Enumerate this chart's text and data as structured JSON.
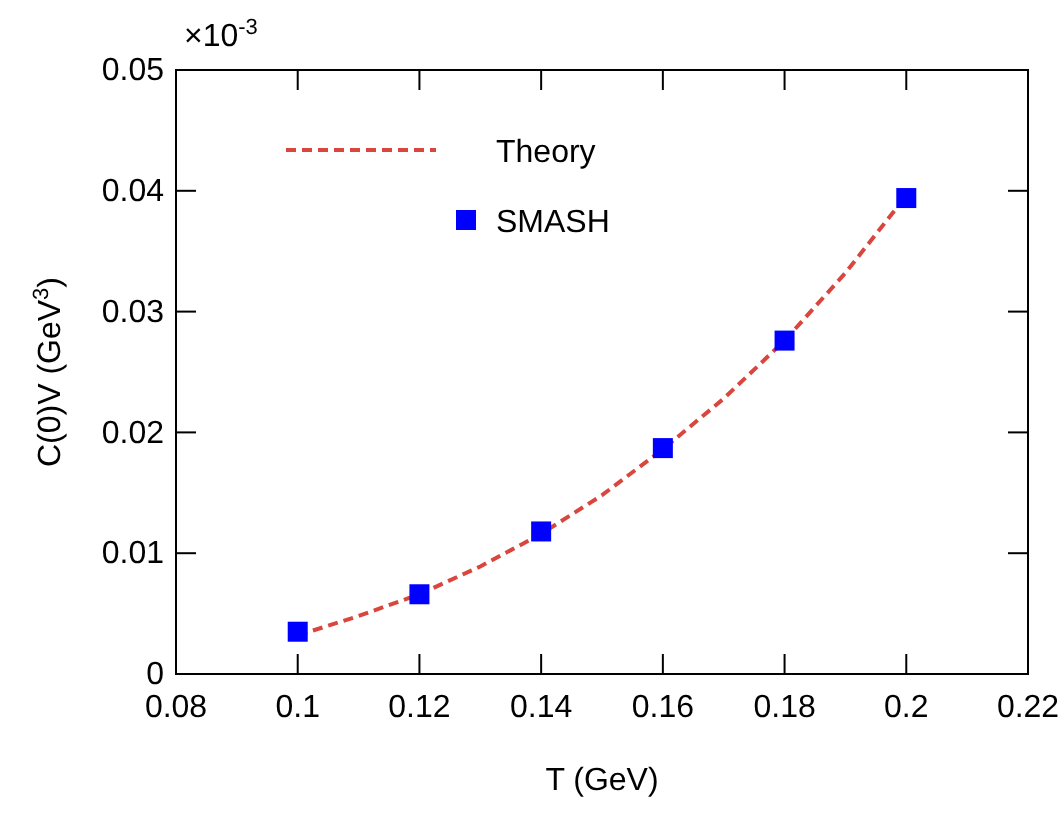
{
  "chart_data": {
    "type": "line",
    "xlabel": "T (GeV)",
    "ylabel": "C(0)V (GeV$^{3}$)",
    "annotations": [
      "×10$^{-3}$"
    ],
    "xlim": [
      0.08,
      0.22
    ],
    "xticks": [
      0.08,
      0.1,
      0.12,
      0.14,
      0.16,
      0.18,
      0.2,
      0.22
    ],
    "ylim": [
      0,
      0.05
    ],
    "yticks": [
      0,
      0.01,
      0.02,
      0.03,
      0.04,
      0.05
    ],
    "grid": false,
    "legend": "top left",
    "series": [
      {
        "name": "Theory",
        "type": "line",
        "color": "#d9463e",
        "line_style": "dashed",
        "marker": "none",
        "x": [
          0.1,
          0.11,
          0.12,
          0.13,
          0.14,
          0.15,
          0.16,
          0.17,
          0.18,
          0.19,
          0.2
        ],
        "values": [
          0.0032,
          0.0048,
          0.0066,
          0.0089,
          0.0116,
          0.0148,
          0.0186,
          0.0228,
          0.0276,
          0.0332,
          0.0396
        ]
      },
      {
        "name": "SMASH",
        "type": "scatter",
        "color": "#0000ff",
        "marker": "square",
        "x": [
          0.1,
          0.12,
          0.14,
          0.16,
          0.18,
          0.2
        ],
        "values": [
          0.0035,
          0.0066,
          0.0118,
          0.0187,
          0.0276,
          0.0394
        ]
      }
    ]
  }
}
